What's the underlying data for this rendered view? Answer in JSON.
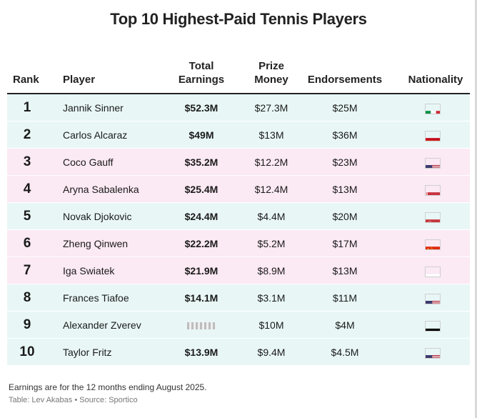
{
  "title": "Top 10 Highest-Paid Tennis Players",
  "headers": {
    "rank": "Rank",
    "player": "Player",
    "total_l1": "Total",
    "total_l2": "Earnings",
    "prize_l1": "Prize",
    "prize_l2": "Money",
    "endorsements": "Endorsements",
    "nationality": "Nationality"
  },
  "colors": {
    "men_row": "#e8f7f6",
    "women_row": "#fbe9f3",
    "header_rule": "#222222"
  },
  "chart_data": {
    "type": "table",
    "columns": [
      "Rank",
      "Player",
      "Total Earnings",
      "Prize Money",
      "Endorsements",
      "Nationality"
    ],
    "rows": [
      {
        "rank": "1",
        "player": "Jannik Sinner",
        "total": "$52.3M",
        "prize": "$27.3M",
        "endorsements": "$25M",
        "nationality": "Italy",
        "flag": "it",
        "group": "men"
      },
      {
        "rank": "2",
        "player": "Carlos Alcaraz",
        "total": "$49M",
        "prize": "$13M",
        "endorsements": "$36M",
        "nationality": "Spain",
        "flag": "es",
        "group": "men"
      },
      {
        "rank": "3",
        "player": "Coco Gauff",
        "total": "$35.2M",
        "prize": "$12.2M",
        "endorsements": "$23M",
        "nationality": "United States",
        "flag": "us",
        "group": "women"
      },
      {
        "rank": "4",
        "player": "Aryna Sabalenka",
        "total": "$25.4M",
        "prize": "$12.4M",
        "endorsements": "$13M",
        "nationality": "Belarus",
        "flag": "by",
        "group": "women"
      },
      {
        "rank": "5",
        "player": "Novak Djokovic",
        "total": "$24.4M",
        "prize": "$4.4M",
        "endorsements": "$20M",
        "nationality": "Serbia",
        "flag": "rs",
        "group": "men"
      },
      {
        "rank": "6",
        "player": "Zheng Qinwen",
        "total": "$22.2M",
        "prize": "$5.2M",
        "endorsements": "$17M",
        "nationality": "China",
        "flag": "cn",
        "group": "women"
      },
      {
        "rank": "7",
        "player": "Iga Swiatek",
        "total": "$21.9M",
        "prize": "$8.9M",
        "endorsements": "$13M",
        "nationality": "Poland",
        "flag": "pl",
        "group": "women"
      },
      {
        "rank": "8",
        "player": "Frances Tiafoe",
        "total": "$14.1M",
        "prize": "$3.1M",
        "endorsements": "$11M",
        "nationality": "United States",
        "flag": "us",
        "group": "men"
      },
      {
        "rank": "9",
        "player": "Alexander Zverev",
        "total": "",
        "prize": "$10M",
        "endorsements": "$4M",
        "nationality": "Germany",
        "flag": "de",
        "group": "men"
      },
      {
        "rank": "10",
        "player": "Taylor Fritz",
        "total": "$13.9M",
        "prize": "$9.4M",
        "endorsements": "$4.5M",
        "nationality": "United States",
        "flag": "us",
        "group": "men"
      }
    ]
  },
  "footnote": "Earnings are for the 12 months ending August 2025.",
  "credit": "Table: Lev Akabas • Source: Sportico"
}
